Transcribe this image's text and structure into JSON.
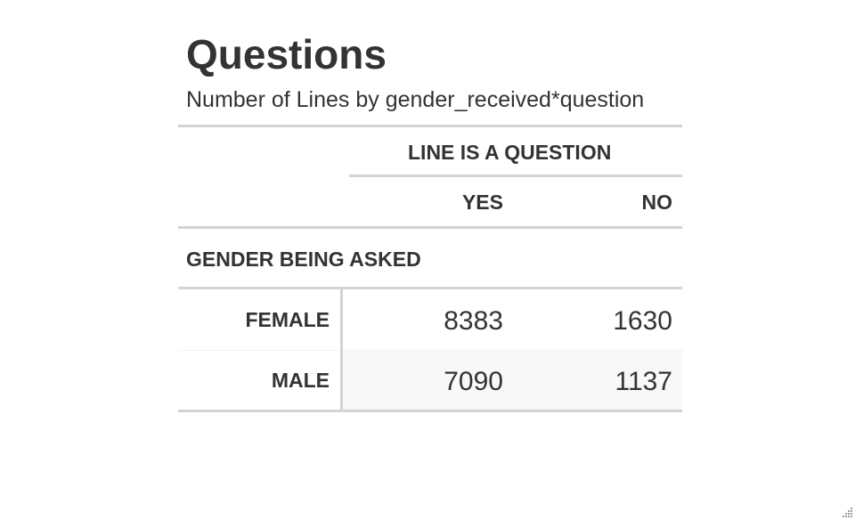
{
  "title": "Questions",
  "subtitle": "Number of Lines by gender_received*question",
  "table": {
    "spanner_label": "LINE IS A QUESTION",
    "columns": [
      "YES",
      "NO"
    ],
    "group_label": "GENDER BEING ASKED",
    "rows": [
      {
        "label": "FEMALE",
        "values": [
          "8383",
          "1630"
        ]
      },
      {
        "label": "MALE",
        "values": [
          "7090",
          "1137"
        ]
      }
    ]
  },
  "colors": {
    "text": "#333333",
    "rule": "#d3d3d3",
    "stripe": "#f8f8f8"
  }
}
